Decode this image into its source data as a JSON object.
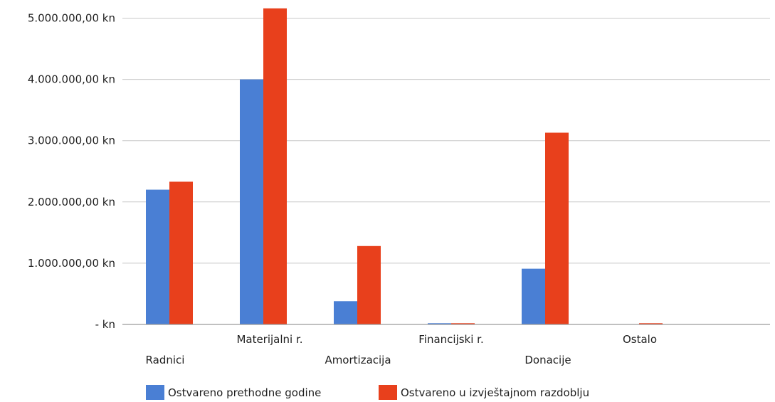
{
  "chart_data": {
    "type": "bar",
    "title": "",
    "xlabel": "",
    "ylabel": "",
    "ylim": [
      0,
      5200000
    ],
    "yticks": [
      0,
      1000000,
      2000000,
      3000000,
      4000000,
      5000000
    ],
    "ytick_labels": [
      "-  kn",
      "1.000.000,00 kn",
      "2.000.000,00 kn",
      "3.000.000,00 kn",
      "4.000.000,00 kn",
      "5.000.000,00 kn"
    ],
    "categories": [
      "Radnici",
      "Materijalni r.",
      "Amortizacija",
      "Financijski r.",
      "Donacije",
      "Ostalo"
    ],
    "grid": true,
    "legend_position": "bottom",
    "series": [
      {
        "name": "Ostvareno prethodne godine",
        "color": "#4a7fd4",
        "values": [
          2200000,
          4000000,
          380000,
          20000,
          910000,
          0
        ]
      },
      {
        "name": "Ostvareno u izvještajnom razdoblju",
        "color": "#e8401c",
        "values": [
          2330000,
          5160000,
          1280000,
          20000,
          3130000,
          20000
        ]
      }
    ]
  }
}
